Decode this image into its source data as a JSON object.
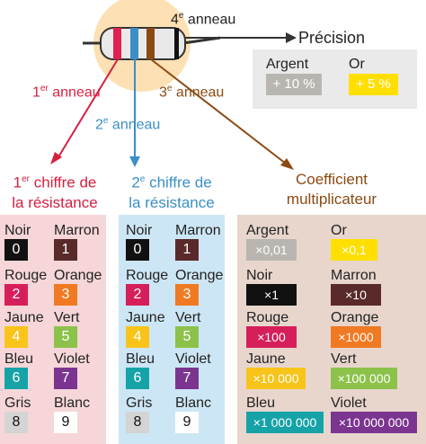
{
  "colors": {
    "red": "#e0214f",
    "blue": "#3b8fc6",
    "brown": "#8b4a12",
    "silver": "#b9b6b2",
    "gold": "#ffdf00"
  },
  "rings": {
    "first_num": "1",
    "first_sup": "er",
    "first_word": " anneau",
    "second_num": "2",
    "second_sup": "e",
    "second_word": " anneau",
    "third_num": "3",
    "third_sup": "e",
    "third_word": " anneau",
    "fourth_num": "4",
    "fourth_sup": "e",
    "fourth_word": " anneau"
  },
  "precision": {
    "title": "Précision",
    "items": [
      {
        "name": "Argent",
        "value": "+ 10 %",
        "color": "#b9b6b2",
        "text": "#ffffff"
      },
      {
        "name": "Or",
        "value": "+ 5 %",
        "color": "#ffdf00",
        "text": "#ffffff"
      }
    ]
  },
  "headings": {
    "first_num": "1",
    "first_sup": "er",
    "first_rest": " chiffre de",
    "first_line2": "la résistance",
    "second_num": "2",
    "second_sup": "e",
    "second_rest": " chiffre de",
    "second_line2": "la résistance",
    "third_line1": "Coefficient",
    "third_line2": "multiplicateur"
  },
  "digits": [
    {
      "name": "Noir",
      "value": "0",
      "color": "#111111",
      "text": "#ffffff"
    },
    {
      "name": "Marron",
      "value": "1",
      "color": "#5a2a2a",
      "text": "#ffffff"
    },
    {
      "name": "Rouge",
      "value": "2",
      "color": "#d61f5a",
      "text": "#ffffff"
    },
    {
      "name": "Orange",
      "value": "3",
      "color": "#f07a22",
      "text": "#ffffff"
    },
    {
      "name": "Jaune",
      "value": "4",
      "color": "#f8c41a",
      "text": "#ffffff"
    },
    {
      "name": "Vert",
      "value": "5",
      "color": "#8cc24a",
      "text": "#ffffff"
    },
    {
      "name": "Bleu",
      "value": "6",
      "color": "#16a3a8",
      "text": "#ffffff"
    },
    {
      "name": "Violet",
      "value": "7",
      "color": "#7b3591",
      "text": "#ffffff"
    },
    {
      "name": "Gris",
      "value": "8",
      "color": "#d4d4d4",
      "text": "#111111"
    },
    {
      "name": "Blanc",
      "value": "9",
      "color": "#ffffff",
      "text": "#111111"
    }
  ],
  "multipliers": [
    {
      "name": "Argent",
      "value": "×0,01",
      "color": "#b9b6b2",
      "text": "#ffffff"
    },
    {
      "name": "Or",
      "value": "×0,1",
      "color": "#ffdf00",
      "text": "#ffffff"
    },
    {
      "name": "Noir",
      "value": "×1",
      "color": "#111111",
      "text": "#ffffff"
    },
    {
      "name": "Marron",
      "value": "×10",
      "color": "#5a2a2a",
      "text": "#ffffff"
    },
    {
      "name": "Rouge",
      "value": "×100",
      "color": "#d61f5a",
      "text": "#ffffff"
    },
    {
      "name": "Orange",
      "value": "×1000",
      "color": "#f07a22",
      "text": "#ffffff"
    },
    {
      "name": "Jaune",
      "value": "×10 000",
      "color": "#f8c41a",
      "text": "#ffffff"
    },
    {
      "name": "Vert",
      "value": "×100 000",
      "color": "#8cc24a",
      "text": "#ffffff"
    },
    {
      "name": "Bleu",
      "value": "×1 000 000",
      "color": "#16a3a8",
      "text": "#ffffff"
    },
    {
      "name": "Violet",
      "value": "×10 000 000",
      "color": "#7b3591",
      "text": "#ffffff"
    }
  ]
}
